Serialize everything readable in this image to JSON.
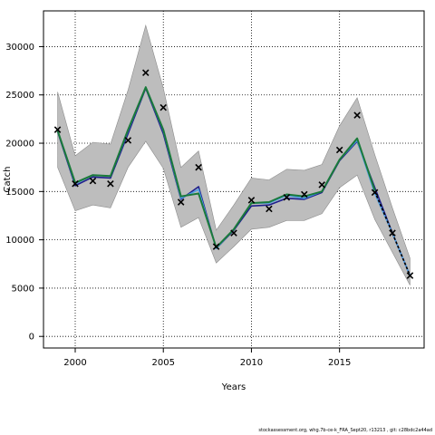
{
  "chart_data": {
    "type": "line",
    "xlabel": "Years",
    "ylabel": "Catch",
    "xlim": [
      1998.2,
      2019.8
    ],
    "ylim": [
      -1200,
      33700
    ],
    "xticks": [
      2000,
      2005,
      2010,
      2015
    ],
    "yticks": [
      0,
      5000,
      10000,
      15000,
      20000,
      25000,
      30000
    ],
    "grid": "dotted",
    "legend": "none",
    "band": {
      "x": [
        1999,
        2000,
        2001,
        2002,
        2003,
        2004,
        2005,
        2006,
        2007,
        2008,
        2009,
        2010,
        2011,
        2012,
        2013,
        2014,
        2015,
        2016,
        2017,
        2018,
        2019
      ],
      "upper": [
        25300,
        18700,
        20100,
        19900,
        25500,
        32200,
        25700,
        17500,
        19200,
        11000,
        13600,
        16400,
        16200,
        17300,
        17200,
        17800,
        21800,
        24700,
        18800,
        13300,
        8100
      ],
      "lower": [
        17500,
        13000,
        13600,
        13300,
        17500,
        20200,
        17400,
        11300,
        12300,
        7600,
        9300,
        11100,
        11300,
        12000,
        12000,
        12700,
        15400,
        16700,
        12100,
        8700,
        5300
      ]
    },
    "series": [
      {
        "color": "#1e1e8c",
        "x": [
          1999,
          2000,
          2001,
          2002,
          2003,
          2004,
          2005,
          2006,
          2007,
          2008,
          2009,
          2010,
          2011,
          2012,
          2013,
          2014,
          2015,
          2016,
          2017,
          2018,
          2019
        ],
        "values": [
          21200,
          15600,
          16500,
          16400,
          21000,
          25700,
          21000,
          14200,
          15500,
          9100,
          11000,
          13500,
          13600,
          14300,
          14200,
          14900,
          18200,
          20200,
          15400,
          10700,
          6300
        ]
      },
      {
        "color": "#4d9fe6",
        "x": [
          1999,
          2000,
          2001,
          2002,
          2003,
          2004,
          2005,
          2006,
          2007,
          2008,
          2009,
          2010,
          2011,
          2012,
          2013,
          2014,
          2015,
          2016,
          2017,
          2018,
          2019
        ],
        "values": [
          21300,
          15800,
          16700,
          16600,
          21300,
          25800,
          21300,
          14300,
          15200,
          9100,
          11100,
          13800,
          13800,
          14600,
          14300,
          15000,
          18300,
          20300,
          14800,
          10700,
          6300
        ]
      },
      {
        "color": "#1a7a3a",
        "x": [
          1999,
          2000,
          2001,
          2002,
          2003,
          2004,
          2005,
          2006,
          2007,
          2008,
          2009,
          2010,
          2011,
          2012,
          2013,
          2014,
          2015,
          2016,
          2017
        ],
        "values": [
          21300,
          15900,
          16700,
          16600,
          21400,
          25800,
          21400,
          14500,
          14800,
          9200,
          11100,
          13800,
          13900,
          14700,
          14500,
          15000,
          18300,
          20500,
          15100
        ]
      }
    ],
    "forecast": {
      "color": "#000000",
      "x": [
        2017,
        2018,
        2019
      ],
      "values": [
        15000,
        10700,
        6300
      ]
    },
    "observed": {
      "marker": "x",
      "x": [
        1999,
        2000,
        2001,
        2002,
        2003,
        2004,
        2005,
        2006,
        2007,
        2008,
        2009,
        2010,
        2011,
        2012,
        2013,
        2014,
        2015,
        2016,
        2017,
        2018,
        2019
      ],
      "values": [
        21400,
        15800,
        16100,
        15800,
        20300,
        27300,
        23700,
        13900,
        17500,
        9300,
        10700,
        14100,
        13200,
        14400,
        14700,
        15700,
        19300,
        22900,
        14900,
        10700,
        6300
      ]
    }
  },
  "footer": "stockassessment.org,  whg.7b-ce-k_FRA_Sept20, r13213 ,  git: c28bdc2a44ad"
}
